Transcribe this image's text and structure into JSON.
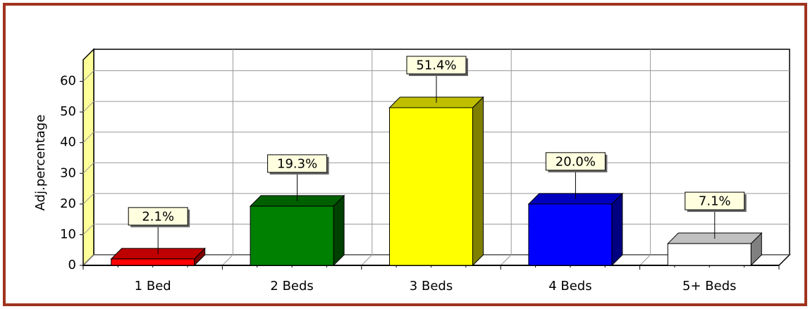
{
  "chart_data": {
    "type": "bar3d",
    "y_label": "Adj.percentage",
    "categories": [
      "1 Bed",
      "2 Beds",
      "3 Beds",
      "4 Beds",
      "5+ Beds"
    ],
    "values": [
      2.1,
      19.3,
      51.4,
      20.0,
      7.1
    ],
    "value_labels": [
      "2.1%",
      "19.3%",
      "51.4%",
      "20.0%",
      "7.1%"
    ],
    "colors": [
      "#ff0000",
      "#008000",
      "#ffff00",
      "#0000ff",
      "#ffffff"
    ],
    "ylim": [
      0,
      67
    ],
    "yticks": [
      0,
      10,
      20,
      30,
      40,
      50,
      60
    ],
    "grid": true
  }
}
